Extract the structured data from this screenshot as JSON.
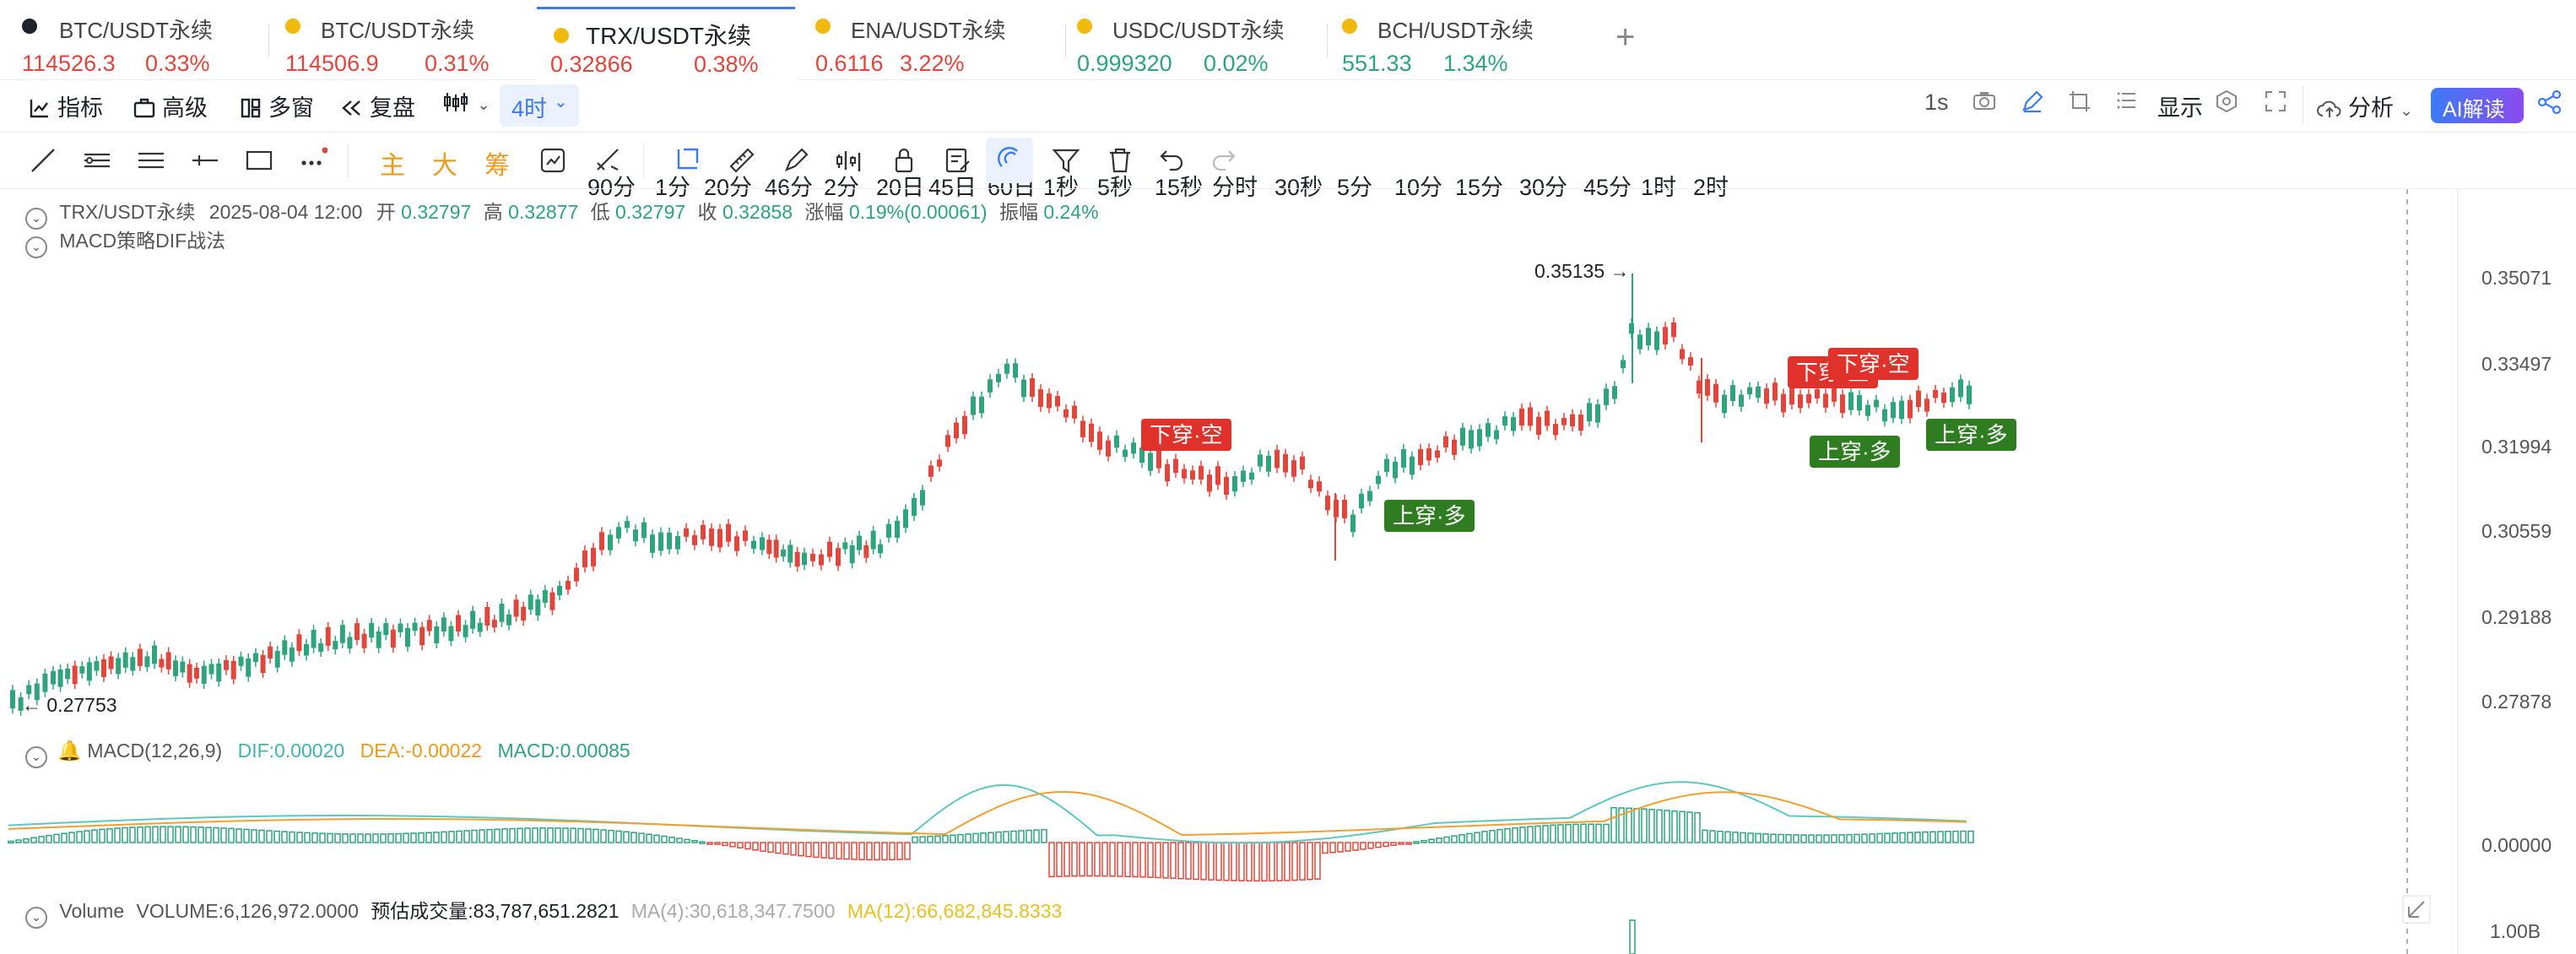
{
  "symbol_tabs": [
    {
      "name": "BTC/USDT永续",
      "price": "114526.3",
      "change": "0.33%",
      "dir": "dn",
      "icon_color": "#1d2129"
    },
    {
      "name": "BTC/USDT永续",
      "price": "114506.9",
      "change": "0.31%",
      "dir": "dn",
      "icon_color": "#f0b90b"
    },
    {
      "name": "TRX/USDT永续",
      "price": "0.32866",
      "change": "0.38%",
      "dir": "dn",
      "icon_color": "#f0b90b"
    },
    {
      "name": "ENA/USDT永续",
      "price": "0.6116",
      "change": "3.22%",
      "dir": "dn",
      "icon_color": "#f0b90b"
    },
    {
      "name": "USDC/USDT永续",
      "price": "0.999320",
      "change": "0.02%",
      "dir": "up",
      "icon_color": "#f0b90b"
    },
    {
      "name": "BCH/USDT永续",
      "price": "551.33",
      "change": "1.34%",
      "dir": "up",
      "icon_color": "#f0b90b"
    }
  ],
  "add_tab": "+",
  "toolbar": {
    "indicators": "指标",
    "advanced": "高级",
    "multi_window": "多窗",
    "replay": "复盘",
    "active_interval": "4时",
    "intervals": [
      "90分",
      "1分",
      "20分",
      "46分",
      "2分",
      "20日",
      "45日",
      "60日",
      "1秒",
      "5秒",
      "15秒",
      "分时",
      "30秒",
      "5分",
      "10分",
      "15分",
      "30分",
      "45分",
      "1时",
      "2时"
    ],
    "right_interval": "1s",
    "display": "显示",
    "analysis": "分析",
    "ai": "AI解读"
  },
  "drawing_tools": {
    "main": "主",
    "big": "大",
    "chip": "筹"
  },
  "legend": {
    "symbol": "TRX/USDT永续",
    "datetime": "2025-08-04 12:00",
    "open_label": "开",
    "open": "0.32797",
    "high_label": "高",
    "high": "0.32877",
    "low_label": "低",
    "low": "0.32797",
    "close_label": "收",
    "close": "0.32858",
    "change_label": "涨幅",
    "change": "0.19%(0.00061)",
    "amp_label": "振幅",
    "amp": "0.24%",
    "strategy": "MACD策略DIF战法"
  },
  "price_axis": [
    "0.35071",
    "0.33497",
    "0.31994",
    "0.30559",
    "0.29188",
    "0.27878"
  ],
  "max_label": "0.35135 →",
  "min_label": "← 0.27753",
  "signals": [
    {
      "text": "下穿·空",
      "color": "red"
    },
    {
      "text": "上穿·多",
      "color": "green"
    },
    {
      "text": "下穿·空",
      "color": "red"
    },
    {
      "text": "下穿·空",
      "color": "red"
    },
    {
      "text": "上穿·多",
      "color": "green"
    },
    {
      "text": "上穿·多",
      "color": "green"
    }
  ],
  "macd": {
    "title": "MACD(12,26,9)",
    "dif": "DIF:0.00020",
    "dea": "DEA:-0.00022",
    "macd": "MACD:0.00085",
    "zero": "0.00000"
  },
  "volume": {
    "title": "Volume",
    "value": "VOLUME:6,126,972.0000",
    "est": "预估成交量:83,787,651.2821",
    "ma4": "MA(4):30,618,347.7500",
    "ma12": "MA(12):66,682,845.8333",
    "axis": "1.00B"
  },
  "colors": {
    "up": "#2ea37c",
    "down": "#e0463c",
    "accent": "#3b7bf6",
    "dif": "#5ec8c0",
    "dea": "#f0a030"
  }
}
